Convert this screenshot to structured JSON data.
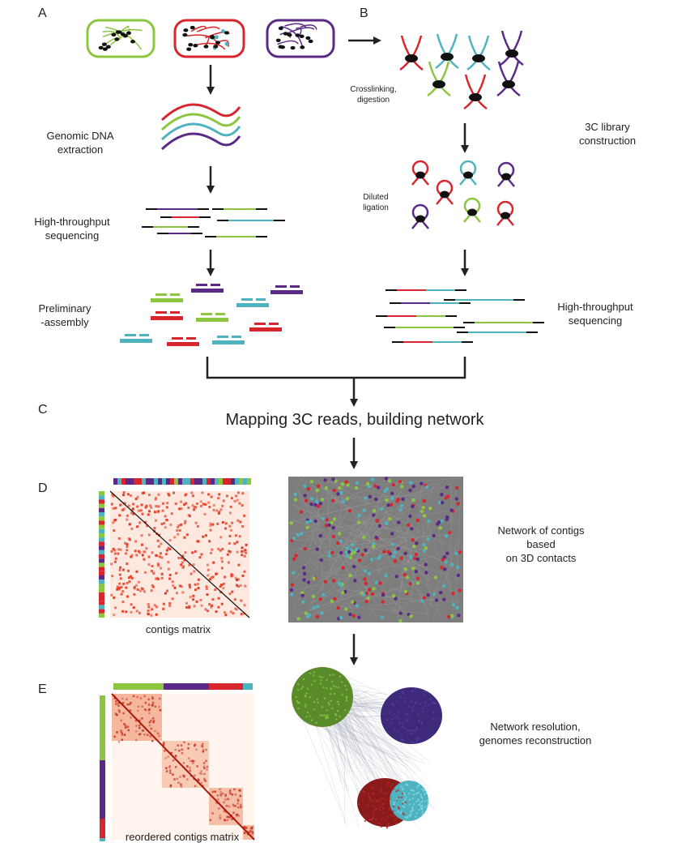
{
  "panels": {
    "a": "A",
    "b": "B",
    "c": "C",
    "d": "D",
    "e": "E"
  },
  "labels": {
    "genomic_dna": [
      "Genomic DNA",
      "extraction"
    ],
    "htseq_left": [
      "High-throughput",
      "sequencing"
    ],
    "preliminary": [
      "Preliminary",
      "-assembly"
    ],
    "crosslinking": [
      "Crosslinking,",
      "digestion"
    ],
    "library": [
      "3C library",
      "construction"
    ],
    "diluted": [
      "Diluted",
      "ligation"
    ],
    "htseq_right": [
      "High-throughput",
      "sequencing"
    ],
    "mapping": "Mapping 3C reads, building network",
    "network_contigs": [
      "Network of contigs",
      "based",
      "on 3D contacts"
    ],
    "contigs_matrix": "contigs matrix",
    "network_resolution": [
      "Network resolution,",
      "genomes reconstruction"
    ],
    "reordered_matrix": "reordered contigs matrix"
  },
  "colors": {
    "green": "#8cc63f",
    "red": "#d7262e",
    "cyan": "#4fb3bf",
    "purple": "#5b2a86",
    "black": "#111111",
    "arrow": "#222222",
    "matrix_bg": "#fde9df",
    "matrix_dot": "#e23a22",
    "network_gray": "#7d7d7d",
    "network_green": "#5a8a2a",
    "network_purple": "#3e2a7a",
    "network_red": "#8b1a1a"
  },
  "species_order": [
    "green",
    "red",
    "purple"
  ]
}
